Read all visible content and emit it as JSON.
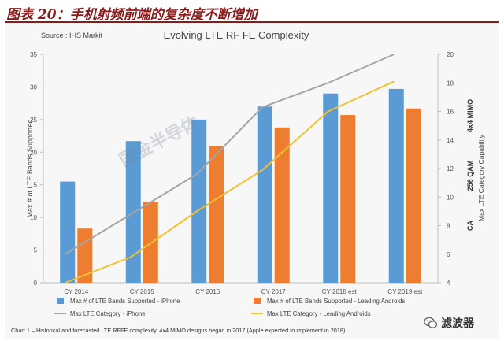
{
  "header": {
    "figure_title": "图表 20：手机射频前端的复杂度不断增加"
  },
  "source": "Source : IHS Markit",
  "caption": "Chart 1 – Historical and forecasted LTE RFFE complexity. 4x4 MIMO designs began in 2017 (Apple expected to implement in 2018)",
  "watermark": {
    "diagonal": "国金半导体",
    "brand": "滤波器"
  },
  "colors": {
    "blue": "#5b9bd5",
    "orange": "#ed7d31",
    "gray": "#a5a5a5",
    "yellow": "#f2c12e"
  },
  "chart_data": {
    "type": "bar",
    "title": "Evolving LTE RF FE Complexity",
    "categories": [
      "CY 2014",
      "CY 2015",
      "CY 2016",
      "CY 2017",
      "CY 2018 est",
      "CY 2019 est"
    ],
    "ylabel": "Max # of LTE Bands Supported",
    "ylim": [
      0,
      35
    ],
    "yticks": [
      0,
      5,
      10,
      15,
      20,
      25,
      30,
      35
    ],
    "y2label": "Max LTE Category Capability",
    "y2lim": [
      4,
      20
    ],
    "y2ticks": [
      4,
      6,
      8,
      10,
      12,
      14,
      16,
      18,
      20
    ],
    "y2annotations": [
      "CA",
      "256 QAM",
      "4x4 MIMO"
    ],
    "grid": false,
    "legend_position": "bottom",
    "series": [
      {
        "name": "Max # of LTE Bands Supported - iPhone",
        "kind": "bar",
        "axis": "left",
        "color": "#5b9bd5",
        "values": [
          15.5,
          21.7,
          25,
          27,
          29,
          29.7
        ]
      },
      {
        "name": "Max # of LTE Bands Supported - Leading Androids",
        "kind": "bar",
        "axis": "left",
        "color": "#ed7d31",
        "values": [
          8.3,
          12.4,
          20.9,
          23.8,
          25.7,
          26.7
        ]
      },
      {
        "name": "Max LTE Category - iPhone",
        "kind": "line",
        "axis": "right",
        "color": "#a5a5a5",
        "values": [
          6,
          8.8,
          11.6,
          16.3,
          18,
          20
        ]
      },
      {
        "name": "Max LTE Category - Leading Androids",
        "kind": "line",
        "axis": "right",
        "color": "#f2c12e",
        "values": [
          4,
          5.8,
          9,
          11.9,
          16,
          18.1
        ]
      }
    ]
  }
}
